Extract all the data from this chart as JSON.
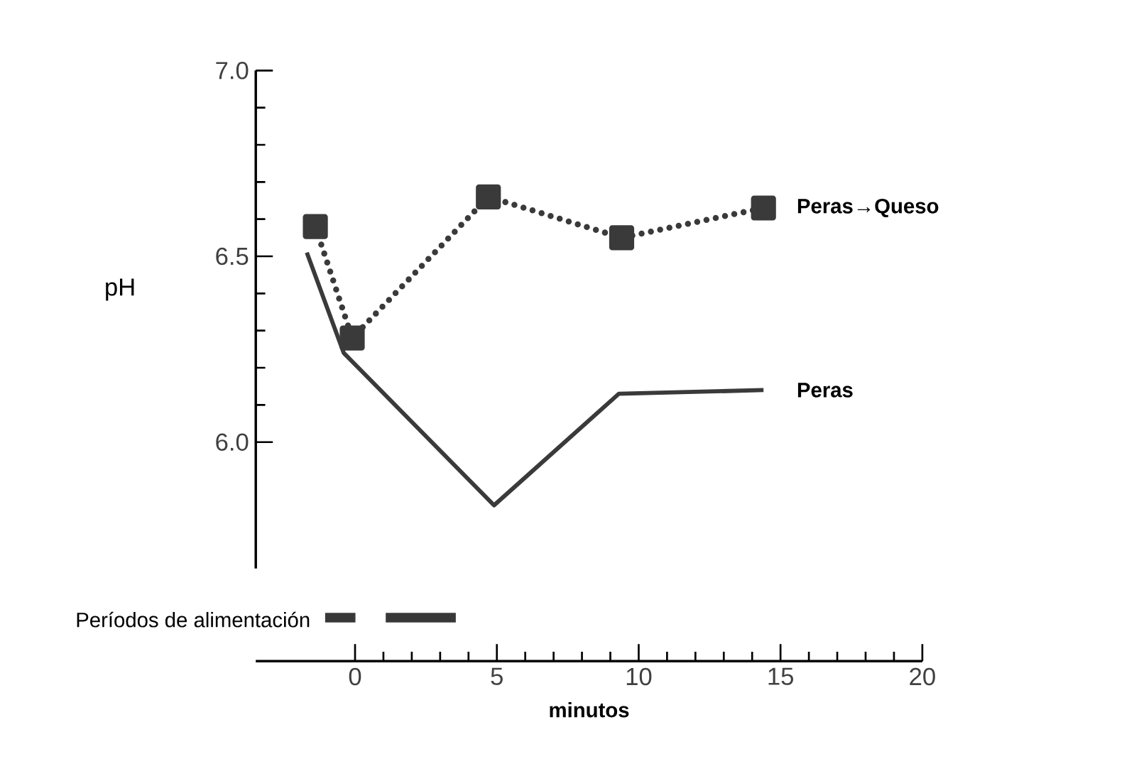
{
  "chart_data": {
    "type": "line",
    "xlabel": "minutos",
    "ylabel": "pH",
    "xlim": [
      -3.5,
      20
    ],
    "xticks": [
      0,
      5,
      10,
      15,
      20
    ],
    "ylim": [
      5.66,
      7.0
    ],
    "yticks": [
      {
        "value": 6.0,
        "label": "6.0"
      },
      {
        "value": 6.5,
        "label": "6.5"
      },
      {
        "value": 7.0,
        "label": "7.0"
      }
    ],
    "series": [
      {
        "name": "Peras→Queso",
        "color": "#3a3a3a",
        "marker": "square",
        "line_style": "dotted",
        "x": [
          -1.4,
          -0.1,
          4.7,
          9.4,
          14.4
        ],
        "values": [
          6.58,
          6.28,
          6.66,
          6.55,
          6.63
        ]
      },
      {
        "name": "Peras",
        "color": "#3a3a3a",
        "marker": "none",
        "line_style": "solid",
        "x": [
          -1.7,
          -0.4,
          4.9,
          9.3,
          14.4
        ],
        "values": [
          6.51,
          6.24,
          5.83,
          6.13,
          6.14
        ]
      }
    ],
    "annotations": [
      "Períodos de alimentación"
    ],
    "grid": false
  }
}
